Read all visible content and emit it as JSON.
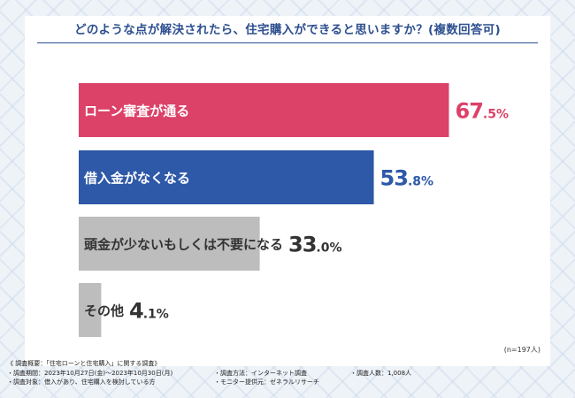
{
  "chart_data": {
    "type": "bar",
    "orientation": "horizontal",
    "title": "どのような点が解決されたら、住宅購入ができると思いますか？(複数回答可)",
    "categories": [
      "ローン審査が通る",
      "借入金がなくなる",
      "頭金が少ないもしくは不要になる",
      "その他"
    ],
    "values": [
      67.5,
      53.8,
      33.0,
      4.1
    ],
    "value_labels": [
      {
        "int": "67",
        "dec": ".5",
        "pct": "%"
      },
      {
        "int": "53",
        "dec": ".8",
        "pct": "%"
      },
      {
        "int": "33",
        "dec": ".0",
        "pct": "%"
      },
      {
        "int": "4",
        "dec": ".1",
        "pct": "%"
      }
    ],
    "colors": [
      "#dc4168",
      "#2e58a8",
      "#bdbdbd",
      "#bdbdbd"
    ],
    "label_colors": [
      "#ffffff",
      "#ffffff",
      "#333333",
      "#333333"
    ],
    "value_colors": [
      "#dc4168",
      "#2e58a8",
      "#333333",
      "#333333"
    ],
    "xlim": [
      0,
      100
    ],
    "sample_note": "(n=197人)",
    "grid": false,
    "legend": "none"
  },
  "footnote": {
    "overview": "《 調査概要：「住宅ローンと住宅購入」に関する調査》",
    "period": "・調査期間：2023年10月27日(金)～2023年10月30日(月)",
    "method": "・調査方法：インターネット調査",
    "count": "・調査人数：1,008人",
    "target": "・調査対象：借入があり、住宅購入を検討している方",
    "provider": "・モニター提供元：ゼネラルリサーチ"
  }
}
